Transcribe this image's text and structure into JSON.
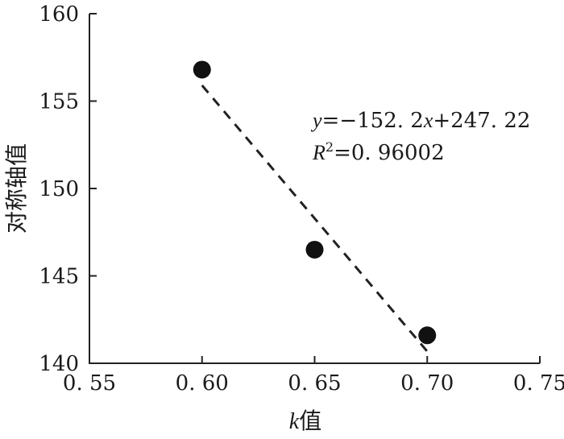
{
  "chart_data": {
    "type": "scatter",
    "title": "",
    "xlabel": {
      "italic": "k",
      "rest": "值"
    },
    "ylabel": "对称轴值",
    "xlim": [
      0.55,
      0.75
    ],
    "ylim": [
      140,
      160
    ],
    "x_ticks": [
      "0.55",
      "0.60",
      "0.65",
      "0.70",
      "0.75"
    ],
    "y_ticks": [
      "140",
      "145",
      "150",
      "155",
      "160"
    ],
    "points": [
      {
        "x": 0.6,
        "y": 156.8
      },
      {
        "x": 0.65,
        "y": 146.5
      },
      {
        "x": 0.7,
        "y": 141.6
      }
    ],
    "trendline": {
      "slope": -152.2,
      "intercept": 247.22,
      "x_from": 0.6,
      "x_to": 0.7,
      "style": "dashed"
    },
    "equation": {
      "y": "y",
      "eq_pre": "=−152. 2",
      "x": "x",
      "eq_post": "+247. 22"
    },
    "r_squared": {
      "r": "R",
      "sup": "2",
      "rest": "=0. 96002"
    },
    "grid": false,
    "colors": {
      "marker": "#111111",
      "line": "#222222",
      "axis": "#222222"
    }
  }
}
